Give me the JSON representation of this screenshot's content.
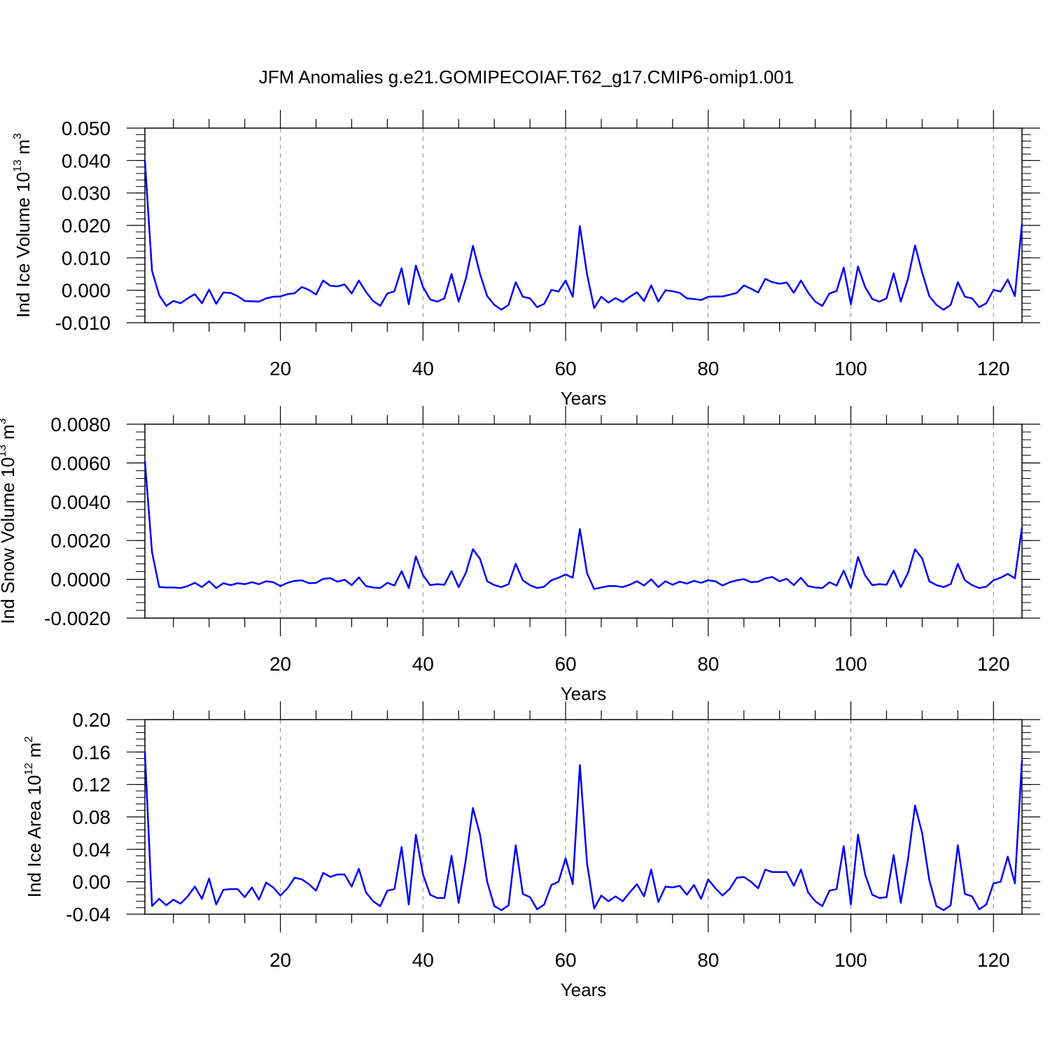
{
  "figure": {
    "title": "JFM Anomalies g.e21.GOMIPECOIAF.T62_g17.CMIP6-omip1.001"
  },
  "chart_data": [
    {
      "type": "line",
      "xlabel": "Years",
      "ylabel": {
        "prefix": "Ind Ice Volume 10",
        "exp": "13",
        "unit": " m",
        "unit_exp": "3"
      },
      "xlim": [
        1,
        124
      ],
      "ylim": [
        -0.01,
        0.05
      ],
      "x_major_ticks": [
        20,
        40,
        60,
        80,
        100,
        120
      ],
      "x_tick_labels": [
        "20",
        "40",
        "60",
        "80",
        "100",
        "120"
      ],
      "y_major_ticks": [
        -0.01,
        0.0,
        0.01,
        0.02,
        0.03,
        0.04,
        0.05
      ],
      "y_tick_labels": [
        "-0.010",
        "0.000",
        "0.010",
        "0.020",
        "0.030",
        "0.040",
        "0.050"
      ],
      "y_minor_step": 0.002,
      "grid": "x-dashed",
      "line_color": "#0000ff",
      "series": [
        {
          "x_start": 1,
          "values": [
            0.04,
            0.006,
            -0.0015,
            -0.0048,
            -0.0033,
            -0.004,
            -0.0025,
            -0.0012,
            -0.004,
            0.0002,
            -0.0042,
            -0.0007,
            -0.0008,
            -0.0018,
            -0.0033,
            -0.0034,
            -0.0035,
            -0.0025,
            -0.002,
            -0.0019,
            -0.0012,
            -0.0009,
            0.001,
            0.0001,
            -0.0013,
            0.003,
            0.0014,
            0.0012,
            0.0018,
            -0.001,
            0.003,
            -0.0005,
            -0.0033,
            -0.0048,
            -0.001,
            -0.0003,
            0.0068,
            -0.0043,
            0.0076,
            0.001,
            -0.0028,
            -0.0035,
            -0.0025,
            0.005,
            -0.0035,
            0.0035,
            0.0137,
            0.005,
            -0.0018,
            -0.0045,
            -0.006,
            -0.0045,
            0.0025,
            -0.002,
            -0.0025,
            -0.0052,
            -0.0042,
            0.0001,
            -0.0004,
            0.003,
            -0.002,
            0.0198,
            0.005,
            -0.0055,
            -0.002,
            -0.0038,
            -0.0024,
            -0.0036,
            -0.002,
            -0.0006,
            -0.0033,
            0.0015,
            -0.0035,
            0.0,
            -0.0003,
            -0.0008,
            -0.0025,
            -0.0027,
            -0.003,
            -0.002,
            -0.0019,
            -0.0019,
            -0.0014,
            -0.0008,
            0.0015,
            0.0005,
            -0.0007,
            0.0035,
            0.0025,
            0.002,
            0.0024,
            -0.0008,
            0.003,
            -0.0007,
            -0.0035,
            -0.0048,
            -0.001,
            -0.0002,
            0.007,
            -0.0043,
            0.0073,
            0.001,
            -0.0027,
            -0.0035,
            -0.0025,
            0.0052,
            -0.0035,
            0.0035,
            0.0138,
            0.0055,
            -0.0018,
            -0.0045,
            -0.006,
            -0.0045,
            0.0025,
            -0.002,
            -0.0025,
            -0.0052,
            -0.004,
            0.0001,
            -0.0004,
            0.0033,
            -0.0018,
            0.0205
          ]
        }
      ]
    },
    {
      "type": "line",
      "xlabel": "Years",
      "ylabel": {
        "prefix": "Ind Snow Volume 10",
        "exp": "13",
        "unit": " m",
        "unit_exp": "3"
      },
      "xlim": [
        1,
        124
      ],
      "ylim": [
        -0.002,
        0.008
      ],
      "x_major_ticks": [
        20,
        40,
        60,
        80,
        100,
        120
      ],
      "x_tick_labels": [
        "20",
        "40",
        "60",
        "80",
        "100",
        "120"
      ],
      "y_major_ticks": [
        -0.002,
        0.0,
        0.002,
        0.004,
        0.006,
        0.008
      ],
      "y_tick_labels": [
        "-0.0020",
        "0.0000",
        "0.0020",
        "0.0040",
        "0.0060",
        "0.0080"
      ],
      "y_minor_step": 0.0004,
      "grid": "x-dashed",
      "line_color": "#0000ff",
      "series": [
        {
          "x_start": 1,
          "values": [
            0.0061,
            0.0014,
            -0.0004,
            -0.00042,
            -0.00042,
            -0.00045,
            -0.00035,
            -0.00018,
            -0.0004,
            -0.0001,
            -0.00045,
            -0.0002,
            -0.0003,
            -0.0002,
            -0.00025,
            -0.00015,
            -0.00025,
            -0.0001,
            -0.00015,
            -0.00035,
            -0.00018,
            -8e-05,
            -5e-05,
            -0.0002,
            -0.00018,
            2e-05,
            6e-05,
            -0.00012,
            -2e-05,
            -0.0003,
            0.0001,
            -0.00035,
            -0.00042,
            -0.00045,
            -0.00018,
            -0.00032,
            0.00042,
            -0.00045,
            0.00118,
            0.00022,
            -0.0003,
            -0.00025,
            -0.00028,
            0.00042,
            -0.0004,
            0.00032,
            0.00155,
            0.00105,
            -0.0001,
            -0.0003,
            -0.0004,
            -0.00025,
            0.0008,
            -5e-05,
            -0.0003,
            -0.00045,
            -0.00038,
            -5e-05,
            8e-05,
            0.00025,
            8e-05,
            0.0026,
            0.00032,
            -0.0005,
            -0.00042,
            -0.00035,
            -0.00035,
            -0.0004,
            -0.00028,
            -0.0001,
            -0.00032,
            0.0,
            -0.0004,
            -0.0001,
            -0.00028,
            -0.00012,
            -0.00022,
            -8e-05,
            -0.00018,
            -5e-05,
            -0.0001,
            -0.00032,
            -0.00015,
            -5e-05,
            1e-05,
            -0.00015,
            -0.00012,
            5e-05,
            0.00012,
            -0.0001,
            3e-05,
            -0.0003,
            8e-05,
            -0.00035,
            -0.00042,
            -0.00045,
            -0.00015,
            -0.00032,
            0.00045,
            -0.00045,
            0.00115,
            0.0002,
            -0.0003,
            -0.00025,
            -0.00028,
            0.00045,
            -0.0004,
            0.00032,
            0.00155,
            0.00108,
            -0.0001,
            -0.0003,
            -0.0004,
            -0.00025,
            0.0008,
            -5e-05,
            -0.0003,
            -0.00045,
            -0.00038,
            -5e-05,
            8e-05,
            0.00028,
            5e-05,
            0.00268
          ]
        }
      ]
    },
    {
      "type": "line",
      "xlabel": "Years",
      "ylabel": {
        "prefix": "Ind Ice Area 10",
        "exp": "12",
        "unit": " m",
        "unit_exp": "2"
      },
      "xlim": [
        1,
        124
      ],
      "ylim": [
        -0.04,
        0.2
      ],
      "x_major_ticks": [
        20,
        40,
        60,
        80,
        100,
        120
      ],
      "x_tick_labels": [
        "20",
        "40",
        "60",
        "80",
        "100",
        "120"
      ],
      "y_major_ticks": [
        -0.04,
        0.0,
        0.04,
        0.08,
        0.12,
        0.16,
        0.2
      ],
      "y_tick_labels": [
        "-0.04",
        "0.00",
        "0.04",
        "0.08",
        "0.12",
        "0.16",
        "0.20"
      ],
      "y_minor_step": 0.008,
      "grid": "x-dashed",
      "line_color": "#0000ff",
      "series": [
        {
          "x_start": 1,
          "values": [
            0.16,
            -0.03,
            -0.021,
            -0.029,
            -0.022,
            -0.027,
            -0.018,
            -0.006,
            -0.021,
            0.004,
            -0.028,
            -0.01,
            -0.009,
            -0.009,
            -0.019,
            -0.007,
            -0.022,
            -0.001,
            -0.007,
            -0.017,
            -0.008,
            0.005,
            0.003,
            -0.003,
            -0.011,
            0.011,
            0.006,
            0.009,
            0.009,
            -0.006,
            0.016,
            -0.013,
            -0.024,
            -0.03,
            -0.011,
            -0.009,
            0.043,
            -0.028,
            0.058,
            0.009,
            -0.016,
            -0.02,
            -0.02,
            0.032,
            -0.026,
            0.027,
            0.091,
            0.058,
            0.0,
            -0.03,
            -0.035,
            -0.029,
            0.045,
            -0.015,
            -0.019,
            -0.034,
            -0.028,
            -0.004,
            0.0,
            0.029,
            -0.003,
            0.144,
            0.023,
            -0.033,
            -0.017,
            -0.024,
            -0.018,
            -0.024,
            -0.013,
            -0.003,
            -0.018,
            0.015,
            -0.025,
            -0.006,
            -0.007,
            -0.005,
            -0.016,
            -0.004,
            -0.021,
            0.003,
            -0.008,
            -0.017,
            -0.009,
            0.005,
            0.006,
            0.0,
            -0.008,
            0.015,
            0.012,
            0.012,
            0.012,
            -0.005,
            0.015,
            -0.013,
            -0.024,
            -0.03,
            -0.011,
            -0.009,
            0.044,
            -0.028,
            0.058,
            0.009,
            -0.016,
            -0.02,
            -0.019,
            0.033,
            -0.026,
            0.027,
            0.094,
            0.06,
            0.002,
            -0.03,
            -0.035,
            -0.029,
            0.045,
            -0.015,
            -0.018,
            -0.034,
            -0.028,
            -0.002,
            0.0,
            0.031,
            -0.002,
            0.15
          ]
        }
      ]
    }
  ]
}
